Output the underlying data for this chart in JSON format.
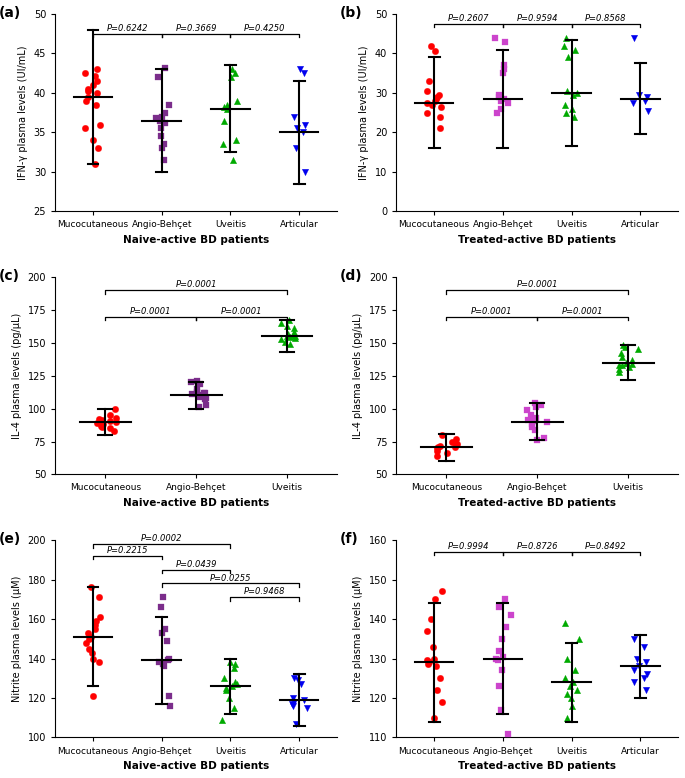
{
  "panels": [
    {
      "label": "(a)",
      "ylabel": "IFN-γ plasma levels (UI/mL)",
      "xlabel": "Naive-active BD patients",
      "ylim": [
        25,
        50
      ],
      "yticks": [
        25,
        30,
        35,
        40,
        45,
        50
      ],
      "groups": [
        "Mucocutaneous",
        "Angio-Behçet",
        "Uveitis",
        "Articular"
      ],
      "colors": [
        "#FF0000",
        "#7B2D8B",
        "#00AA00",
        "#0000EE"
      ],
      "markers": [
        "o",
        "s",
        "^",
        "v"
      ],
      "means": [
        39.5,
        36.5,
        38.0,
        35.0
      ],
      "errors": [
        8.5,
        6.5,
        5.5,
        6.5
      ],
      "data": [
        [
          43.0,
          42.5,
          42.2,
          41.5,
          41.0,
          40.5,
          40.2,
          40.0,
          39.5,
          39.0,
          38.5,
          36.0,
          35.5,
          34.0,
          33.0,
          31.0
        ],
        [
          43.2,
          42.0,
          38.5,
          37.5,
          37.0,
          36.8,
          36.5,
          36.2,
          35.5,
          34.5,
          33.5,
          33.0,
          31.5
        ],
        [
          43.0,
          42.5,
          42.0,
          39.0,
          38.5,
          38.2,
          38.0,
          36.5,
          34.0,
          33.5,
          31.5
        ],
        [
          43.0,
          42.5,
          37.0,
          36.0,
          35.5,
          35.0,
          33.0,
          30.0
        ]
      ],
      "sig_brackets": [
        [
          0,
          1,
          "P=0.6242",
          47.5
        ],
        [
          1,
          2,
          "P=0.3669",
          47.5
        ],
        [
          2,
          3,
          "P=0.4250",
          47.5
        ]
      ]
    },
    {
      "label": "(b)",
      "ylabel": "IFN-γ plasma levels (UI/mL)",
      "xlabel": "Treated-active BD patients",
      "ylim": [
        0,
        50
      ],
      "yticks": [
        0,
        10,
        20,
        30,
        40,
        50
      ],
      "groups": [
        "Mucocutaneous",
        "Angio-Behçet",
        "Uveitis",
        "Articular"
      ],
      "colors": [
        "#FF0000",
        "#CC44CC",
        "#00AA00",
        "#0000EE"
      ],
      "markers": [
        "o",
        "s",
        "^",
        "v"
      ],
      "means": [
        27.5,
        28.5,
        30.0,
        28.5
      ],
      "errors": [
        11.5,
        12.5,
        13.5,
        9.0
      ],
      "data": [
        [
          42.0,
          40.5,
          33.0,
          30.5,
          29.5,
          29.0,
          28.5,
          28.0,
          27.5,
          27.0,
          26.5,
          25.0,
          24.0,
          21.0
        ],
        [
          44.0,
          43.0,
          37.0,
          36.0,
          35.0,
          29.5,
          29.0,
          28.5,
          28.0,
          27.5,
          26.0,
          25.0
        ],
        [
          44.0,
          42.0,
          41.0,
          39.0,
          30.5,
          30.0,
          29.5,
          27.0,
          26.0,
          25.0,
          24.0
        ],
        [
          44.0,
          29.5,
          29.0,
          28.0,
          27.5,
          25.5
        ]
      ],
      "sig_brackets": [
        [
          0,
          1,
          "P=0.2607",
          47.5
        ],
        [
          1,
          2,
          "P=0.9594",
          47.5
        ],
        [
          2,
          3,
          "P=0.8568",
          47.5
        ]
      ]
    },
    {
      "label": "(c)",
      "ylabel": "IL-4 plasma levels (pg/μL)",
      "xlabel": "Naive-active BD patients",
      "ylim": [
        50,
        200
      ],
      "yticks": [
        50,
        75,
        100,
        125,
        150,
        175,
        200
      ],
      "groups": [
        "Mucocutaneous",
        "Angio-Behçet",
        "Uveitis"
      ],
      "colors": [
        "#FF0000",
        "#7B2D8B",
        "#00AA00"
      ],
      "markers": [
        "o",
        "s",
        "^"
      ],
      "means": [
        90.0,
        110.0,
        155.0
      ],
      "errors": [
        10.0,
        10.0,
        12.0
      ],
      "data": [
        [
          100.0,
          95.0,
          93.0,
          92.0,
          91.0,
          90.5,
          90.0,
          89.5,
          89.0,
          88.5,
          87.0,
          86.0,
          85.0,
          83.0
        ],
        [
          121.0,
          120.0,
          119.0,
          115.0,
          113.0,
          112.0,
          111.5,
          111.0,
          110.0,
          109.0,
          108.0,
          107.0,
          103.0,
          101.0
        ],
        [
          167.0,
          165.0,
          163.0,
          161.0,
          158.0,
          157.0,
          156.0,
          155.5,
          155.0,
          154.5,
          154.0,
          153.0,
          151.0,
          149.0
        ]
      ],
      "sig_brackets": [
        [
          0,
          1,
          "P=0.0001",
          170
        ],
        [
          0,
          2,
          "P=0.0001",
          190
        ],
        [
          1,
          2,
          "P=0.0001",
          170
        ]
      ]
    },
    {
      "label": "(d)",
      "ylabel": "IL-4 plasma levels (pg/μL)",
      "xlabel": "Treated-active BD patients",
      "ylim": [
        50,
        200
      ],
      "yticks": [
        50,
        75,
        100,
        125,
        150,
        175,
        200
      ],
      "groups": [
        "Mucocutaneous",
        "Angio-Behçet",
        "Uveitis"
      ],
      "colors": [
        "#FF0000",
        "#CC44CC",
        "#00AA00"
      ],
      "markers": [
        "o",
        "s",
        "^"
      ],
      "means": [
        70.5,
        90.0,
        135.0
      ],
      "errors": [
        10.0,
        14.0,
        13.0
      ],
      "data": [
        [
          80.0,
          77.0,
          75.0,
          73.0,
          71.5,
          71.0,
          70.5,
          70.0,
          68.0,
          66.0,
          64.0
        ],
        [
          104.0,
          103.0,
          101.0,
          99.0,
          95.0,
          93.0,
          91.0,
          90.5,
          90.0,
          88.0,
          86.0,
          84.0,
          78.0,
          76.0
        ],
        [
          148.0,
          147.0,
          145.0,
          142.0,
          139.0,
          137.0,
          135.0,
          134.5,
          134.0,
          133.5,
          133.0,
          132.0,
          130.0,
          128.0
        ]
      ],
      "sig_brackets": [
        [
          0,
          1,
          "P=0.0001",
          170
        ],
        [
          0,
          2,
          "P=0.0001",
          190
        ],
        [
          1,
          2,
          "P=0.0001",
          170
        ]
      ]
    },
    {
      "label": "(e)",
      "ylabel": "Nitrite plasma levels (μM)",
      "xlabel": "Naive-active BD patients",
      "ylim": [
        100,
        200
      ],
      "yticks": [
        100,
        120,
        140,
        160,
        180,
        200
      ],
      "groups": [
        "Mucocutaneous",
        "Angio-Behçet",
        "Uveitis",
        "Articular"
      ],
      "colors": [
        "#FF0000",
        "#7B2D8B",
        "#00AA00",
        "#0000EE"
      ],
      "markers": [
        "o",
        "s",
        "^",
        "v"
      ],
      "means": [
        151.0,
        139.0,
        126.0,
        119.0
      ],
      "errors": [
        25.0,
        22.0,
        14.0,
        13.0
      ],
      "data": [
        [
          176.0,
          171.0,
          161.0,
          159.0,
          157.0,
          155.0,
          153.0,
          151.0,
          150.0,
          148.0,
          145.0,
          143.0,
          140.0,
          138.0,
          121.0
        ],
        [
          171.0,
          166.0,
          155.0,
          153.0,
          149.0,
          140.0,
          139.0,
          138.0,
          137.0,
          136.0,
          121.0,
          116.0
        ],
        [
          138.0,
          137.0,
          135.0,
          130.0,
          128.0,
          127.0,
          126.0,
          125.0,
          124.0,
          120.0,
          115.0,
          109.0
        ],
        [
          130.0,
          129.0,
          127.0,
          120.0,
          119.0,
          118.0,
          117.0,
          116.0,
          115.0,
          107.0
        ]
      ],
      "sig_brackets": [
        [
          0,
          1,
          "P=0.2215",
          192
        ],
        [
          0,
          2,
          "P=0.0002",
          198
        ],
        [
          1,
          2,
          "P=0.0439",
          185
        ],
        [
          1,
          3,
          "P=0.0255",
          178
        ],
        [
          2,
          3,
          "P=0.9468",
          171
        ]
      ]
    },
    {
      "label": "(f)",
      "ylabel": "Nitrite plasma levels (μM)",
      "xlabel": "Treated-active BD patients",
      "ylim": [
        110,
        160
      ],
      "yticks": [
        110,
        120,
        130,
        140,
        150,
        160
      ],
      "groups": [
        "Mucocutaneous",
        "Angio-Behçet",
        "Uveitis",
        "Articular"
      ],
      "colors": [
        "#FF0000",
        "#CC44CC",
        "#00AA00",
        "#0000EE"
      ],
      "markers": [
        "o",
        "s",
        "^",
        "v"
      ],
      "means": [
        129.0,
        130.0,
        124.0,
        128.0
      ],
      "errors": [
        15.0,
        14.0,
        10.0,
        8.0
      ],
      "data": [
        [
          147.0,
          145.0,
          140.0,
          137.0,
          133.0,
          130.0,
          129.5,
          129.0,
          128.5,
          128.0,
          125.0,
          122.0,
          119.0,
          115.0
        ],
        [
          145.0,
          143.0,
          141.0,
          138.0,
          135.0,
          132.0,
          130.5,
          130.0,
          129.5,
          127.0,
          123.0,
          117.0,
          111.0
        ],
        [
          139.0,
          135.0,
          130.0,
          127.0,
          125.0,
          124.0,
          123.0,
          122.0,
          121.0,
          120.0,
          118.0,
          115.0
        ],
        [
          135.0,
          133.0,
          130.0,
          129.0,
          128.0,
          127.0,
          126.0,
          125.0,
          124.0,
          122.0
        ]
      ],
      "sig_brackets": [
        [
          0,
          1,
          "P=0.9994",
          157
        ],
        [
          1,
          2,
          "P=0.8726",
          157
        ],
        [
          2,
          3,
          "P=0.8492",
          157
        ]
      ]
    }
  ]
}
